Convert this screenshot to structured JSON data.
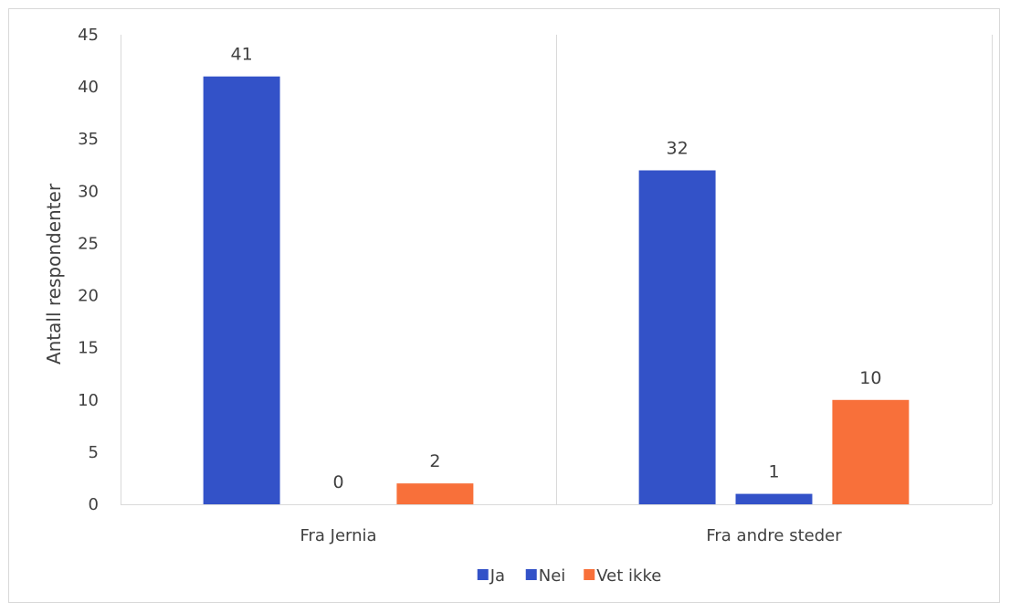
{
  "chart_data": {
    "type": "bar",
    "categories": [
      "Fra Jernia",
      "Fra andre steder"
    ],
    "series": [
      {
        "name": "Ja",
        "values": [
          41,
          32
        ],
        "color": "#3352c8"
      },
      {
        "name": "Nei",
        "values": [
          0,
          1
        ],
        "color": "#3352c8"
      },
      {
        "name": "Vet ikke",
        "values": [
          2,
          10
        ],
        "color": "#f8703a"
      }
    ],
    "title": "",
    "xlabel": "",
    "ylabel": "Antall respondenter",
    "ylim": [
      0,
      45
    ],
    "yticks": [
      0,
      5,
      10,
      15,
      20,
      25,
      30,
      35,
      40,
      45
    ],
    "grid": false,
    "legend_position": "bottom"
  }
}
